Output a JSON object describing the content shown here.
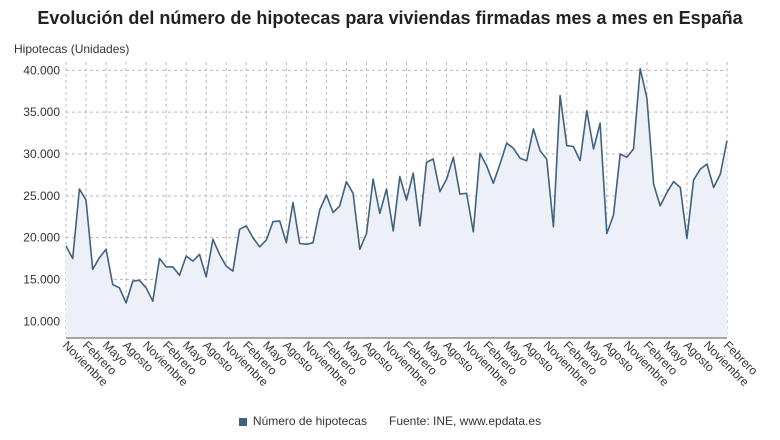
{
  "chart_data": {
    "type": "area",
    "title": "Evolución del número de hipotecas para viviendas firmadas mes a mes en España",
    "ylabel": "Hipotecas (Unidades)",
    "ylim": [
      8000,
      41000
    ],
    "yticks": [
      10000,
      15000,
      20000,
      25000,
      30000,
      35000,
      40000
    ],
    "ytick_labels": [
      "10.000",
      "15.000",
      "20.000",
      "25.000",
      "30.000",
      "35.000",
      "40.000"
    ],
    "xtick_labels": [
      "Noviembre",
      "Febrero",
      "Mayo",
      "Agosto",
      "Noviembre",
      "Febrero",
      "Mayo",
      "Agosto",
      "Noviembre",
      "Febrero",
      "Mayo",
      "Agosto",
      "Noviembre",
      "Febrero",
      "Mayo",
      "Agosto",
      "Noviembre",
      "Febrero",
      "Mayo",
      "Agosto",
      "Noviembre",
      "Febrero",
      "Mayo",
      "Agosto",
      "Noviembre",
      "Febrero",
      "Mayo",
      "Agosto",
      "Noviembre",
      "Febrero",
      "Mayo",
      "Agosto",
      "Noviembre",
      "Febrero"
    ],
    "grid": true,
    "legend_position": "bottom",
    "colors": {
      "line": "#41627e",
      "fill": "#eef0f8",
      "grid": "#b8b8c4",
      "axis": "#555555"
    },
    "series": [
      {
        "name": "Número de hipotecas",
        "values": [
          19000,
          17500,
          25800,
          24500,
          16200,
          17600,
          18600,
          14400,
          14000,
          12200,
          14800,
          14900,
          14000,
          12400,
          17500,
          16500,
          16500,
          15500,
          17800,
          17200,
          18000,
          15300,
          19800,
          18000,
          16600,
          16000,
          21000,
          21400,
          20000,
          18900,
          19700,
          21900,
          22000,
          19400,
          24200,
          19300,
          19200,
          19400,
          23300,
          25100,
          23000,
          23800,
          26700,
          25300,
          18600,
          20500,
          27000,
          22900,
          25800,
          20800,
          27300,
          24500,
          27700,
          21400,
          29000,
          29400,
          25500,
          27000,
          29600,
          25200,
          25300,
          20700,
          30100,
          28600,
          26500,
          28800,
          31300,
          30700,
          29500,
          29200,
          33000,
          30400,
          29400,
          21300,
          37000,
          31000,
          30900,
          29200,
          35200,
          30600,
          33700,
          20500,
          22700,
          30000,
          29600,
          30600,
          40200,
          36700,
          26400,
          23800,
          25400,
          26700,
          26000,
          19900,
          26900,
          28200,
          28800,
          26000,
          27600,
          31600
        ]
      }
    ]
  },
  "legend": {
    "label": "Número de hipotecas"
  },
  "source": "Fuente: INE, www.epdata.es"
}
